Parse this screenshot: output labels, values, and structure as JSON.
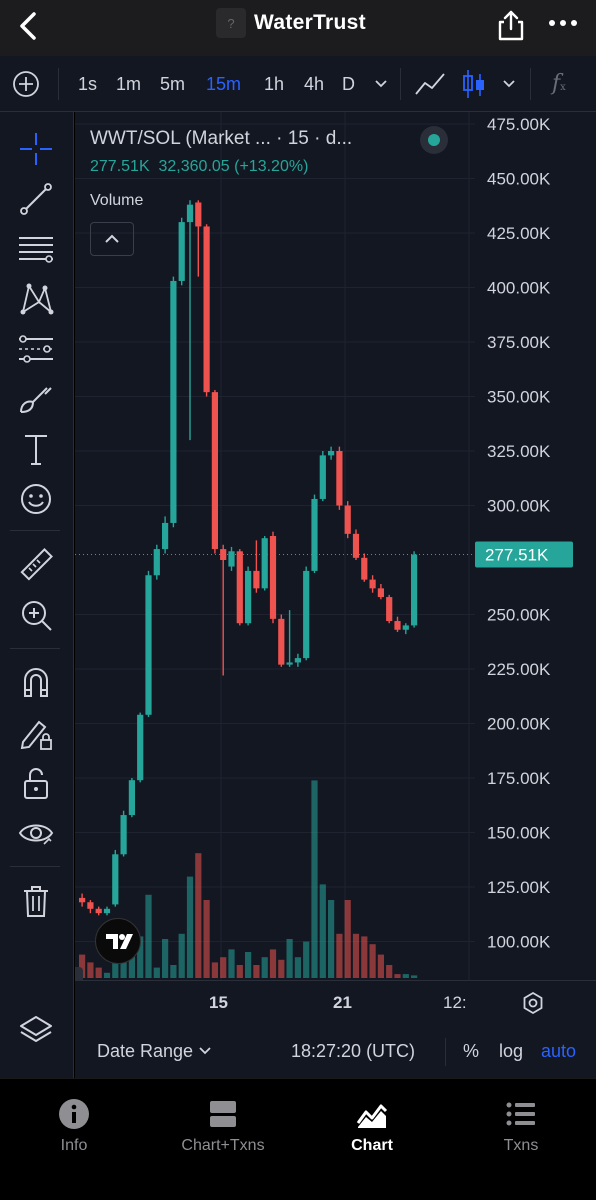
{
  "header": {
    "title": "WaterTrust",
    "logo_glyph": "?",
    "back_icon": "chevron-left-icon",
    "share_icon": "share-icon",
    "more_icon": "ellipsis-icon"
  },
  "toolbar": {
    "intervals": [
      "1s",
      "1m",
      "5m",
      "15m",
      "1h",
      "4h",
      "D"
    ],
    "active_interval": "15m",
    "indicator_label": "f"
  },
  "legend": {
    "title": "WWT/SOL (Market ... · 15 · d...",
    "price": "277.51K",
    "change": "32,360.05 (+13.20%)",
    "volume_label": "Volume"
  },
  "colors": {
    "up": "#26a69a",
    "down": "#ef5350",
    "accent": "#2962ff",
    "background": "#131722",
    "grid": "#1f2330"
  },
  "time_axis": {
    "labels": [
      "15",
      "21",
      "12:"
    ]
  },
  "controls": {
    "date_range": "Date Range",
    "time": "18:27:20 (UTC)",
    "percent": "%",
    "log": "log",
    "auto": "auto"
  },
  "tabs": [
    {
      "label": "Info",
      "icon": "info-icon"
    },
    {
      "label": "Chart+Txns",
      "icon": "chart-txns-icon"
    },
    {
      "label": "Chart",
      "icon": "chart-icon",
      "active": true
    },
    {
      "label": "Txns",
      "icon": "list-icon"
    }
  ],
  "chart_data": {
    "type": "candlestick",
    "symbol": "WWT/SOL",
    "interval": "15",
    "y_tick_labels": [
      "475.00K",
      "450.00K",
      "425.00K",
      "400.00K",
      "375.00K",
      "350.00K",
      "325.00K",
      "300.00K",
      "250.00K",
      "225.00K",
      "200.00K",
      "175.00K",
      "150.00K",
      "125.00K",
      "100.00K"
    ],
    "ylim": [
      85,
      477
    ],
    "last_price": 277.51,
    "last_price_label": "277.51K",
    "candles": [
      {
        "o": 120,
        "h": 122,
        "l": 116,
        "c": 118
      },
      {
        "o": 118,
        "h": 119,
        "l": 113,
        "c": 115
      },
      {
        "o": 115,
        "h": 116,
        "l": 112,
        "c": 113
      },
      {
        "o": 113,
        "h": 116,
        "l": 112,
        "c": 115
      },
      {
        "o": 117,
        "h": 142,
        "l": 116,
        "c": 140
      },
      {
        "o": 140,
        "h": 160,
        "l": 139,
        "c": 158
      },
      {
        "o": 158,
        "h": 175,
        "l": 157,
        "c": 174
      },
      {
        "o": 174,
        "h": 205,
        "l": 173,
        "c": 204
      },
      {
        "o": 204,
        "h": 270,
        "l": 203,
        "c": 268
      },
      {
        "o": 268,
        "h": 282,
        "l": 266,
        "c": 280
      },
      {
        "o": 280,
        "h": 295,
        "l": 278,
        "c": 292
      },
      {
        "o": 292,
        "h": 405,
        "l": 290,
        "c": 403
      },
      {
        "o": 403,
        "h": 432,
        "l": 401,
        "c": 430
      },
      {
        "o": 430,
        "h": 440,
        "l": 330,
        "c": 438
      },
      {
        "o": 439,
        "h": 440,
        "l": 405,
        "c": 428
      },
      {
        "o": 428,
        "h": 429,
        "l": 350,
        "c": 352
      },
      {
        "o": 352,
        "h": 353,
        "l": 278,
        "c": 280
      },
      {
        "o": 280,
        "h": 282,
        "l": 222,
        "c": 275
      },
      {
        "o": 272,
        "h": 281,
        "l": 270,
        "c": 279
      },
      {
        "o": 279,
        "h": 280,
        "l": 245,
        "c": 246
      },
      {
        "o": 246,
        "h": 272,
        "l": 245,
        "c": 270
      },
      {
        "o": 270,
        "h": 284,
        "l": 260,
        "c": 262
      },
      {
        "o": 262,
        "h": 286,
        "l": 261,
        "c": 285
      },
      {
        "o": 286,
        "h": 288,
        "l": 246,
        "c": 248
      },
      {
        "o": 248,
        "h": 250,
        "l": 226,
        "c": 227
      },
      {
        "o": 227,
        "h": 252,
        "l": 226,
        "c": 228
      },
      {
        "o": 228,
        "h": 232,
        "l": 226,
        "c": 230
      },
      {
        "o": 230,
        "h": 272,
        "l": 229,
        "c": 270
      },
      {
        "o": 270,
        "h": 305,
        "l": 269,
        "c": 303
      },
      {
        "o": 303,
        "h": 325,
        "l": 302,
        "c": 323
      },
      {
        "o": 323,
        "h": 327,
        "l": 321,
        "c": 325
      },
      {
        "o": 325,
        "h": 327,
        "l": 298,
        "c": 300
      },
      {
        "o": 300,
        "h": 302,
        "l": 285,
        "c": 287
      },
      {
        "o": 287,
        "h": 289,
        "l": 275,
        "c": 276
      },
      {
        "o": 276,
        "h": 278,
        "l": 265,
        "c": 266
      },
      {
        "o": 266,
        "h": 268,
        "l": 260,
        "c": 262
      },
      {
        "o": 262,
        "h": 264,
        "l": 257,
        "c": 258
      },
      {
        "o": 258,
        "h": 259,
        "l": 246,
        "c": 247
      },
      {
        "o": 247,
        "h": 249,
        "l": 242,
        "c": 243
      },
      {
        "o": 243,
        "h": 246,
        "l": 241,
        "c": 245
      },
      {
        "o": 245,
        "h": 279,
        "l": 244,
        "c": 277.51
      }
    ],
    "volumes": [
      18,
      12,
      8,
      4,
      14,
      42,
      28,
      32,
      64,
      8,
      30,
      10,
      34,
      78,
      96,
      60,
      12,
      16,
      22,
      10,
      20,
      10,
      16,
      22,
      14,
      30,
      16,
      28,
      152,
      72,
      60,
      34,
      60,
      34,
      32,
      26,
      18,
      10,
      3,
      3,
      2
    ]
  }
}
